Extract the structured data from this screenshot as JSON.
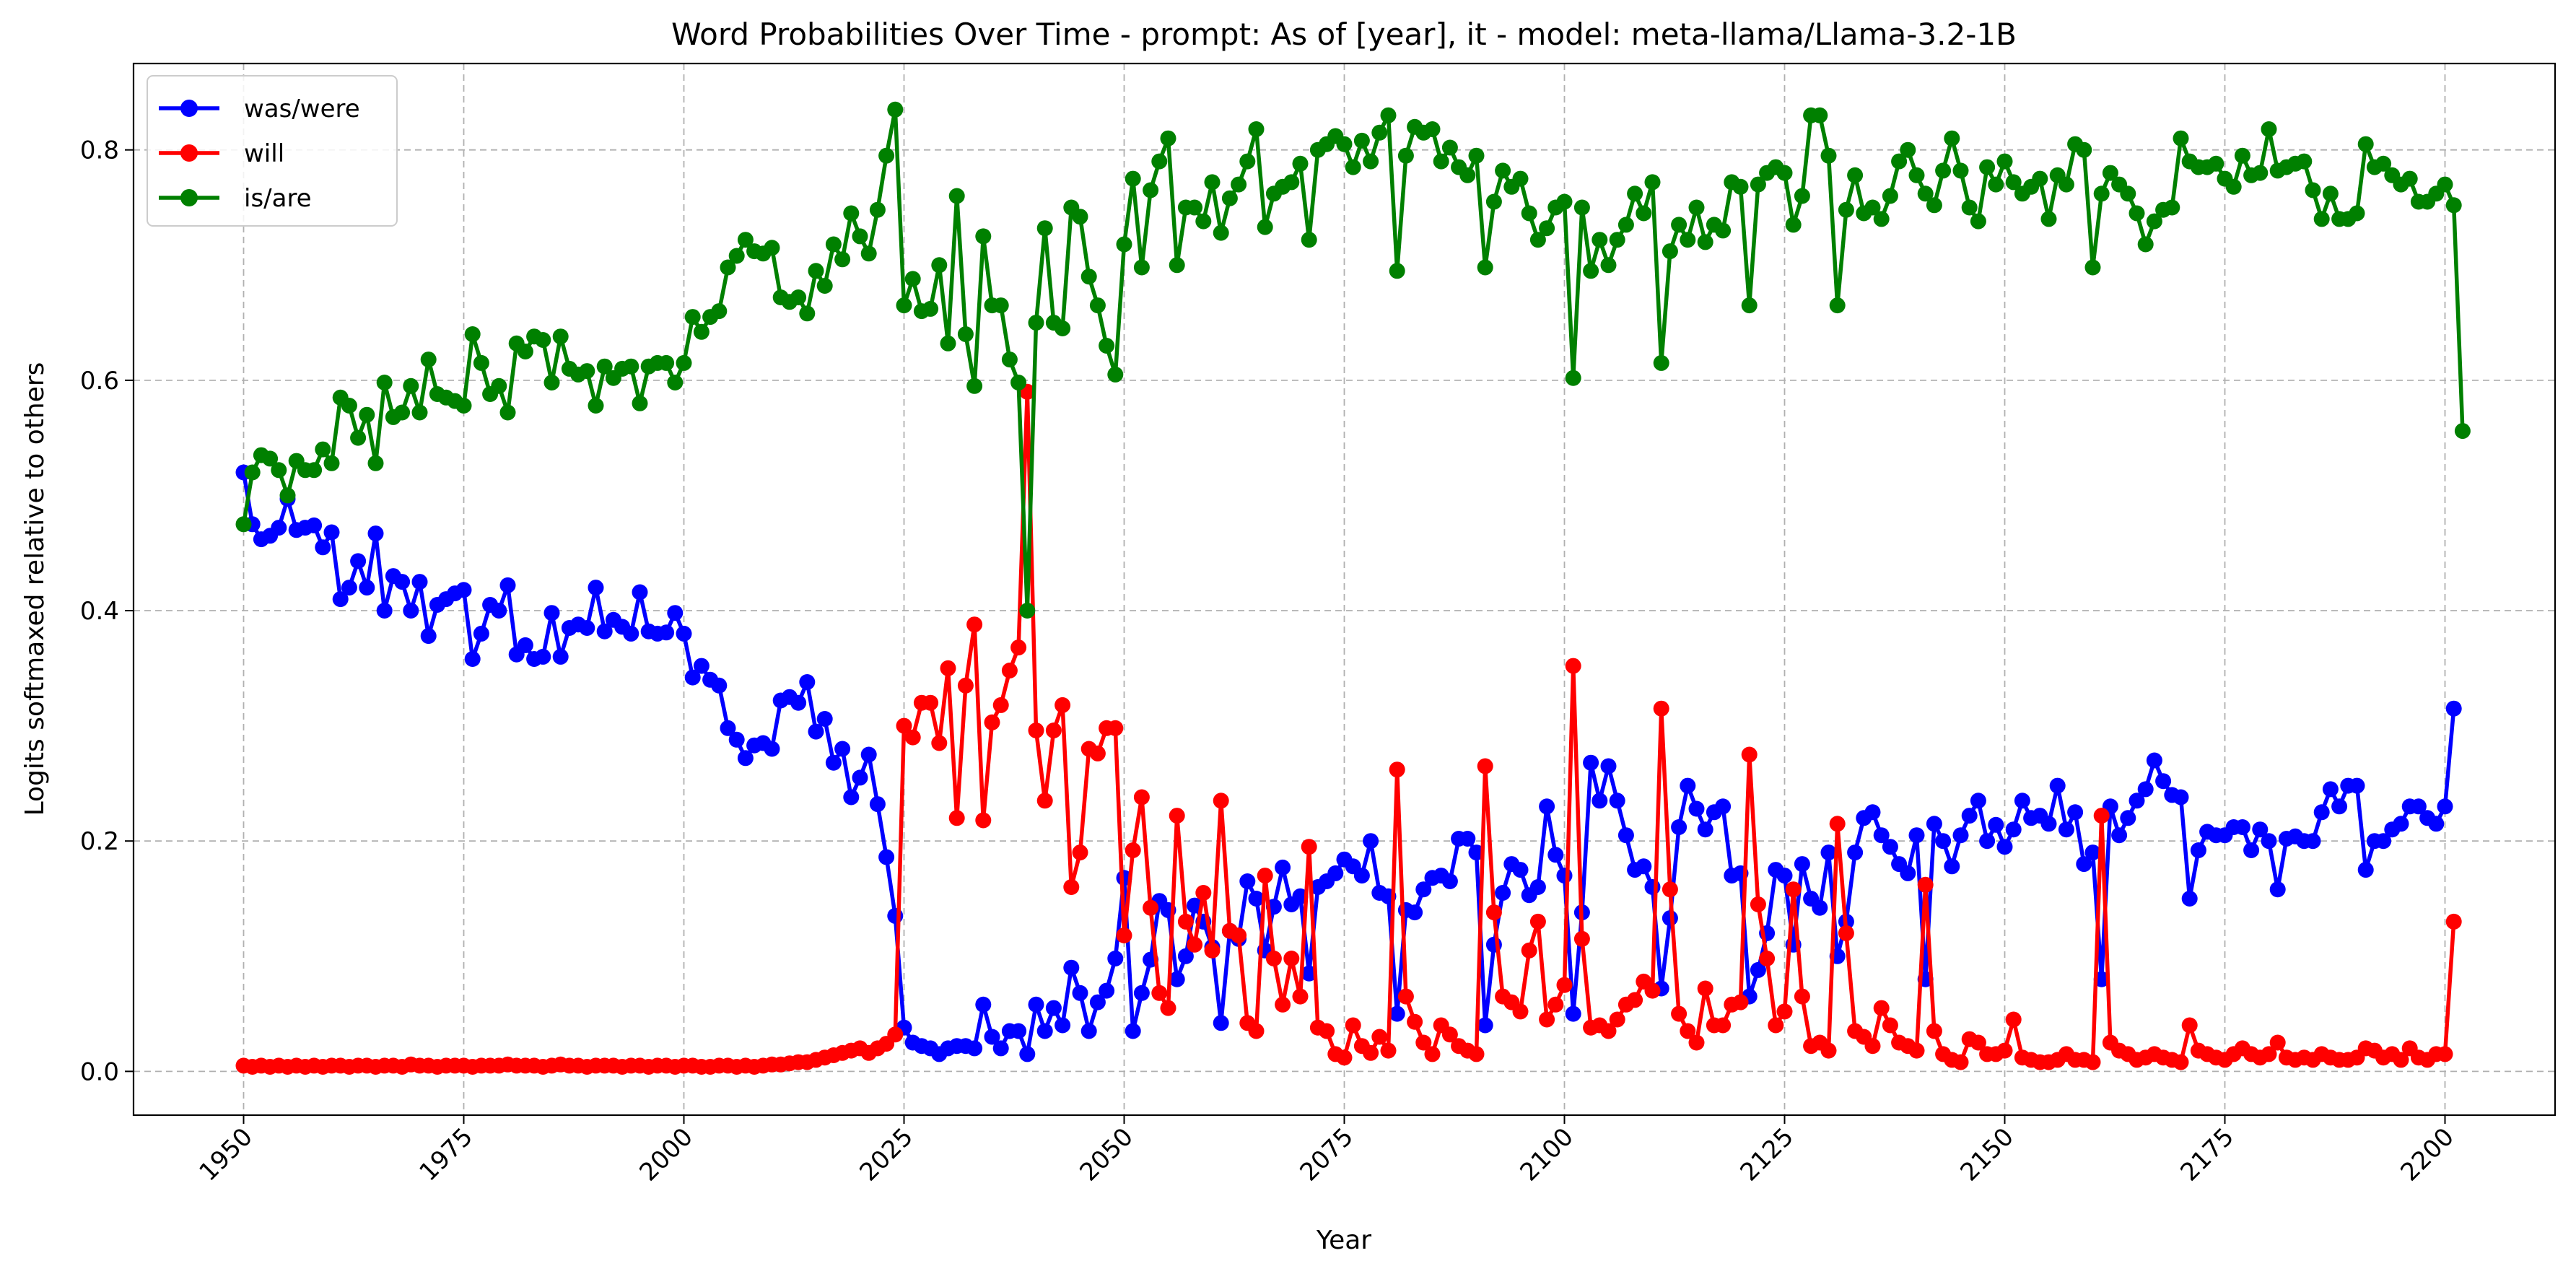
{
  "chart_data": {
    "type": "line",
    "title": "Word Probabilities Over Time - prompt: As of [year], it - model: meta-llama/Llama-3.2-1B",
    "xlabel": "Year",
    "ylabel": "Logits softmaxed relative to others",
    "xlim": [
      1937.5,
      2212.5
    ],
    "ylim": [
      -0.038,
      0.875
    ],
    "x_ticks": [
      1950,
      1975,
      2000,
      2025,
      2050,
      2075,
      2100,
      2125,
      2150,
      2175,
      2200
    ],
    "x_tick_labels": [
      "1950",
      "1975",
      "2000",
      "2025",
      "2050",
      "2075",
      "2100",
      "2125",
      "2150",
      "2175",
      "2200"
    ],
    "y_ticks": [
      0.0,
      0.2,
      0.4,
      0.6,
      0.8
    ],
    "y_tick_labels": [
      "0.0",
      "0.2",
      "0.4",
      "0.6",
      "0.8"
    ],
    "x_tick_rotation": 45,
    "grid": true,
    "grid_style": "dashed",
    "legend_position": "top-left",
    "x": {
      "start": 1950,
      "end": 2200,
      "step": 1
    },
    "series": [
      {
        "name": "was/were",
        "color": "#0000ff",
        "values": [
          0.52,
          0.475,
          0.462,
          0.465,
          0.472,
          0.497,
          0.47,
          0.472,
          0.474,
          0.455,
          0.468,
          0.41,
          0.42,
          0.443,
          0.42,
          0.467,
          0.4,
          0.43,
          0.425,
          0.4,
          0.425,
          0.378,
          0.405,
          0.41,
          0.415,
          0.418,
          0.358,
          0.38,
          0.405,
          0.4,
          0.422,
          0.362,
          0.37,
          0.358,
          0.36,
          0.398,
          0.36,
          0.385,
          0.388,
          0.385,
          0.42,
          0.382,
          0.392,
          0.386,
          0.38,
          0.416,
          0.382,
          0.38,
          0.381,
          0.398,
          0.38,
          0.342,
          0.352,
          0.34,
          0.335,
          0.298,
          0.288,
          0.272,
          0.283,
          0.285,
          0.28,
          0.322,
          0.325,
          0.32,
          0.338,
          0.295,
          0.306,
          0.268,
          0.28,
          0.238,
          0.255,
          0.275,
          0.232,
          0.186,
          0.135,
          0.038,
          0.025,
          0.022,
          0.02,
          0.015,
          0.02,
          0.022,
          0.022,
          0.02,
          0.058,
          0.03,
          0.02,
          0.035,
          0.035,
          0.015,
          0.058,
          0.035,
          0.055,
          0.04,
          0.09,
          0.068,
          0.035,
          0.06,
          0.07,
          0.098,
          0.168,
          0.035,
          0.068,
          0.097,
          0.148,
          0.14,
          0.08,
          0.1,
          0.144,
          0.13,
          0.108,
          0.042,
          0.122,
          0.115,
          0.165,
          0.15,
          0.105,
          0.143,
          0.177,
          0.145,
          0.152,
          0.085,
          0.16,
          0.165,
          0.172,
          0.184,
          0.178,
          0.17,
          0.2,
          0.155,
          0.152,
          0.05,
          0.14,
          0.138,
          0.158,
          0.168,
          0.17,
          0.165,
          0.202,
          0.202,
          0.19,
          0.04,
          0.11,
          0.155,
          0.18,
          0.175,
          0.153,
          0.16,
          0.23,
          0.188,
          0.17,
          0.05,
          0.138,
          0.268,
          0.235,
          0.265,
          0.235,
          0.205,
          0.175,
          0.178,
          0.16,
          0.072,
          0.133,
          0.212,
          0.248,
          0.228,
          0.21,
          0.225,
          0.23,
          0.17,
          0.172,
          0.065,
          0.088,
          0.12,
          0.175,
          0.17,
          0.11,
          0.18,
          0.15,
          0.142,
          0.19,
          0.1,
          0.13,
          0.19,
          0.22,
          0.225,
          0.205,
          0.195,
          0.18,
          0.172,
          0.205,
          0.08,
          0.215,
          0.2,
          0.178,
          0.205,
          0.222,
          0.235,
          0.2,
          0.214,
          0.195,
          0.21,
          0.235,
          0.22,
          0.222,
          0.215,
          0.248,
          0.21,
          0.225,
          0.18,
          0.19,
          0.08,
          0.23,
          0.205,
          0.22,
          0.235,
          0.245,
          0.27,
          0.252,
          0.24,
          0.238,
          0.15,
          0.192,
          0.208,
          0.205,
          0.205,
          0.212,
          0.212,
          0.192,
          0.21,
          0.2,
          0.158,
          0.202,
          0.204,
          0.2,
          0.2,
          0.225,
          0.245,
          0.23,
          0.248,
          0.248,
          0.175,
          0.2,
          0.2,
          0.21,
          0.215,
          0.23,
          0.23,
          0.22,
          0.215,
          0.23,
          0.315
        ]
      },
      {
        "name": "will",
        "color": "#ff0000",
        "values": [
          0.005,
          0.004,
          0.005,
          0.004,
          0.005,
          0.004,
          0.005,
          0.004,
          0.005,
          0.004,
          0.005,
          0.005,
          0.004,
          0.005,
          0.005,
          0.004,
          0.005,
          0.005,
          0.004,
          0.006,
          0.005,
          0.005,
          0.004,
          0.005,
          0.005,
          0.005,
          0.004,
          0.005,
          0.005,
          0.005,
          0.006,
          0.005,
          0.005,
          0.005,
          0.004,
          0.005,
          0.006,
          0.005,
          0.005,
          0.004,
          0.005,
          0.005,
          0.005,
          0.004,
          0.005,
          0.005,
          0.004,
          0.005,
          0.005,
          0.004,
          0.005,
          0.005,
          0.004,
          0.004,
          0.005,
          0.005,
          0.004,
          0.005,
          0.004,
          0.005,
          0.006,
          0.006,
          0.007,
          0.008,
          0.008,
          0.01,
          0.012,
          0.014,
          0.016,
          0.018,
          0.02,
          0.016,
          0.02,
          0.024,
          0.032,
          0.3,
          0.29,
          0.32,
          0.32,
          0.285,
          0.35,
          0.22,
          0.335,
          0.388,
          0.218,
          0.303,
          0.318,
          0.348,
          0.368,
          0.59,
          0.296,
          0.235,
          0.296,
          0.318,
          0.16,
          0.19,
          0.28,
          0.276,
          0.298,
          0.298,
          0.118,
          0.192,
          0.238,
          0.142,
          0.068,
          0.055,
          0.222,
          0.13,
          0.11,
          0.155,
          0.105,
          0.235,
          0.122,
          0.118,
          0.042,
          0.035,
          0.17,
          0.098,
          0.058,
          0.098,
          0.065,
          0.195,
          0.038,
          0.035,
          0.015,
          0.012,
          0.04,
          0.022,
          0.016,
          0.03,
          0.018,
          0.262,
          0.065,
          0.043,
          0.025,
          0.015,
          0.04,
          0.032,
          0.022,
          0.018,
          0.015,
          0.265,
          0.138,
          0.065,
          0.06,
          0.052,
          0.105,
          0.13,
          0.045,
          0.058,
          0.075,
          0.352,
          0.115,
          0.038,
          0.04,
          0.035,
          0.045,
          0.058,
          0.062,
          0.078,
          0.07,
          0.315,
          0.158,
          0.05,
          0.035,
          0.025,
          0.072,
          0.04,
          0.04,
          0.058,
          0.06,
          0.275,
          0.145,
          0.098,
          0.04,
          0.052,
          0.158,
          0.065,
          0.022,
          0.025,
          0.018,
          0.215,
          0.12,
          0.035,
          0.03,
          0.022,
          0.055,
          0.04,
          0.025,
          0.022,
          0.018,
          0.162,
          0.035,
          0.015,
          0.01,
          0.008,
          0.028,
          0.025,
          0.015,
          0.015,
          0.018,
          0.045,
          0.012,
          0.01,
          0.008,
          0.008,
          0.01,
          0.015,
          0.01,
          0.01,
          0.008,
          0.222,
          0.025,
          0.018,
          0.015,
          0.01,
          0.012,
          0.015,
          0.012,
          0.01,
          0.008,
          0.04,
          0.018,
          0.015,
          0.012,
          0.01,
          0.015,
          0.02,
          0.015,
          0.012,
          0.015,
          0.025,
          0.012,
          0.01,
          0.012,
          0.01,
          0.015,
          0.012,
          0.01,
          0.01,
          0.012,
          0.02,
          0.018,
          0.012,
          0.015,
          0.01,
          0.02,
          0.012,
          0.01,
          0.015,
          0.015,
          0.13
        ]
      },
      {
        "name": "is/are",
        "color": "#008000",
        "values": [
          0.475,
          0.52,
          0.535,
          0.532,
          0.522,
          0.5,
          0.53,
          0.522,
          0.522,
          0.54,
          0.528,
          0.585,
          0.578,
          0.55,
          0.57,
          0.528,
          0.598,
          0.568,
          0.572,
          0.595,
          0.572,
          0.618,
          0.588,
          0.585,
          0.582,
          0.578,
          0.64,
          0.615,
          0.588,
          0.595,
          0.572,
          0.632,
          0.625,
          0.638,
          0.635,
          0.598,
          0.638,
          0.61,
          0.605,
          0.608,
          0.578,
          0.612,
          0.602,
          0.61,
          0.612,
          0.58,
          0.612,
          0.615,
          0.615,
          0.598,
          0.615,
          0.655,
          0.642,
          0.655,
          0.66,
          0.698,
          0.708,
          0.722,
          0.712,
          0.71,
          0.715,
          0.672,
          0.668,
          0.672,
          0.658,
          0.695,
          0.682,
          0.718,
          0.705,
          0.745,
          0.725,
          0.71,
          0.748,
          0.795,
          0.835,
          0.665,
          0.688,
          0.66,
          0.662,
          0.7,
          0.632,
          0.76,
          0.64,
          0.595,
          0.725,
          0.665,
          0.665,
          0.618,
          0.598,
          0.4,
          0.65,
          0.732,
          0.65,
          0.645,
          0.75,
          0.742,
          0.69,
          0.665,
          0.63,
          0.605,
          0.718,
          0.775,
          0.698,
          0.765,
          0.79,
          0.81,
          0.7,
          0.75,
          0.75,
          0.738,
          0.772,
          0.728,
          0.758,
          0.77,
          0.79,
          0.818,
          0.733,
          0.762,
          0.768,
          0.772,
          0.788,
          0.722,
          0.8,
          0.805,
          0.812,
          0.805,
          0.785,
          0.808,
          0.79,
          0.815,
          0.83,
          0.695,
          0.795,
          0.82,
          0.815,
          0.818,
          0.79,
          0.802,
          0.785,
          0.778,
          0.795,
          0.698,
          0.755,
          0.782,
          0.768,
          0.775,
          0.745,
          0.722,
          0.732,
          0.75,
          0.755,
          0.602,
          0.75,
          0.695,
          0.722,
          0.7,
          0.722,
          0.735,
          0.762,
          0.745,
          0.772,
          0.615,
          0.712,
          0.735,
          0.722,
          0.75,
          0.72,
          0.735,
          0.73,
          0.772,
          0.768,
          0.665,
          0.77,
          0.78,
          0.785,
          0.78,
          0.735,
          0.76,
          0.83,
          0.83,
          0.795,
          0.665,
          0.748,
          0.778,
          0.745,
          0.75,
          0.74,
          0.76,
          0.79,
          0.8,
          0.778,
          0.762,
          0.752,
          0.782,
          0.81,
          0.782,
          0.75,
          0.738,
          0.785,
          0.77,
          0.79,
          0.772,
          0.762,
          0.768,
          0.775,
          0.74,
          0.778,
          0.77,
          0.805,
          0.8,
          0.698,
          0.762,
          0.78,
          0.77,
          0.762,
          0.745,
          0.718,
          0.738,
          0.748,
          0.75,
          0.81,
          0.79,
          0.785,
          0.785,
          0.788,
          0.775,
          0.768,
          0.795,
          0.778,
          0.78,
          0.818,
          0.782,
          0.785,
          0.788,
          0.79,
          0.765,
          0.74,
          0.762,
          0.74,
          0.74,
          0.745,
          0.805,
          0.785,
          0.788,
          0.778,
          0.77,
          0.775,
          0.755,
          0.755,
          0.762,
          0.77,
          0.752,
          0.556
        ]
      }
    ]
  }
}
